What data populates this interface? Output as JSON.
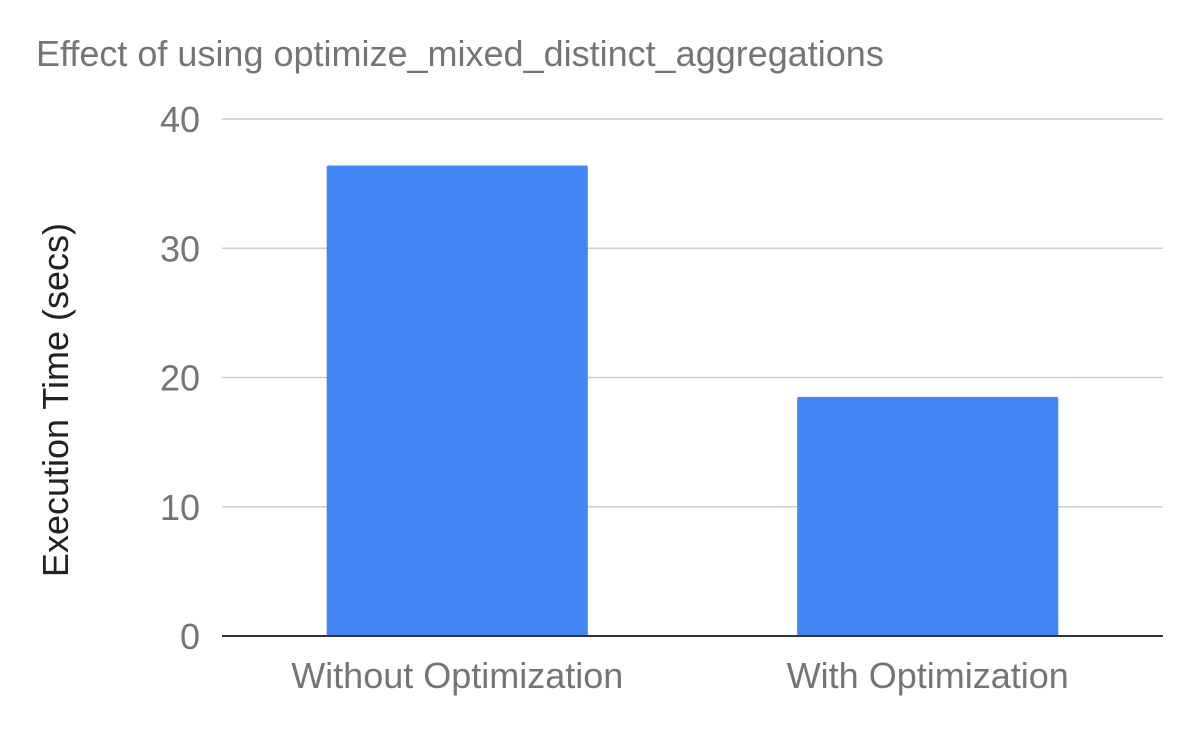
{
  "chart_data": {
    "type": "bar",
    "title": "Effect of using optimize_mixed_distinct_aggregations",
    "xlabel": "",
    "ylabel": "Execution Time (secs)",
    "categories": [
      "Without Optimization",
      "With Optimization"
    ],
    "values": [
      36.4,
      18.5
    ],
    "ylim": [
      0,
      40
    ],
    "yticks": [
      0,
      10,
      20,
      30,
      40
    ],
    "grid": true,
    "legend": "none",
    "bar_color": "#4285f4"
  }
}
